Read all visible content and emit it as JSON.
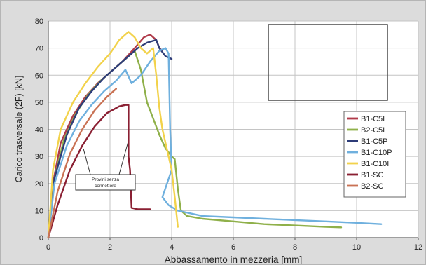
{
  "chart_data": {
    "type": "line",
    "title": "",
    "xlabel": "Abbassamento in mezzeria [mm]",
    "ylabel": "Carico trasversale (2F) [kN]",
    "xlim": [
      0,
      12
    ],
    "ylim": [
      0,
      80
    ],
    "xticks": [
      0,
      2,
      4,
      6,
      8,
      10,
      12
    ],
    "yticks": [
      0,
      10,
      20,
      30,
      40,
      50,
      60,
      70,
      80
    ],
    "grid": true,
    "legend_position": "right",
    "annotation": {
      "lines": [
        "Provini senza",
        "connettore"
      ]
    },
    "series": [
      {
        "name": "B1-C5I",
        "color": "#b03a4a",
        "x": [
          0,
          0.15,
          0.4,
          0.8,
          1.2,
          1.6,
          2.0,
          2.4,
          2.8,
          3.1,
          3.3,
          3.5,
          3.6,
          3.7
        ],
        "y": [
          0,
          20,
          35,
          45,
          52,
          57,
          61,
          65,
          70,
          74,
          75,
          73,
          70,
          69
        ]
      },
      {
        "name": "B2-C5I",
        "color": "#8fb04a",
        "x": [
          0,
          0.2,
          0.5,
          0.9,
          1.3,
          1.7,
          2.1,
          2.5,
          2.8,
          3.0,
          3.2,
          3.4,
          3.6,
          3.8,
          4.0,
          4.1,
          4.2,
          4.3,
          4.5,
          5,
          6,
          7,
          8,
          9,
          9.5
        ],
        "y": [
          0,
          22,
          36,
          46,
          53,
          58,
          62,
          66,
          69,
          62,
          50,
          44,
          38,
          33,
          30,
          29,
          18,
          10,
          8,
          7,
          6,
          5,
          4.5,
          4,
          3.8
        ]
      },
      {
        "name": "B1-C5P",
        "color": "#2d3c78",
        "x": [
          0,
          0.2,
          0.6,
          1.0,
          1.4,
          1.8,
          2.2,
          2.6,
          2.9,
          3.2,
          3.5,
          3.6,
          3.8,
          4.0
        ],
        "y": [
          0,
          22,
          38,
          48,
          54,
          59,
          63,
          67,
          70,
          72,
          73,
          70,
          67,
          66
        ]
      },
      {
        "name": "B1-C10P",
        "color": "#6fb0de",
        "x": [
          0,
          0.2,
          0.6,
          1.0,
          1.4,
          1.8,
          2.2,
          2.5,
          2.7,
          3.0,
          3.3,
          3.6,
          3.8,
          3.9,
          3.95,
          4.0,
          3.7,
          3.9,
          4.2,
          5,
          6,
          7,
          8,
          9,
          10,
          10.8
        ],
        "y": [
          0,
          20,
          34,
          43,
          49,
          54,
          58,
          62,
          57,
          60,
          65,
          69,
          70,
          68,
          40,
          25,
          15,
          12,
          10,
          8,
          7.5,
          7,
          6.5,
          6,
          5.5,
          5
        ]
      },
      {
        "name": "B1-C10I",
        "color": "#f2d24b",
        "x": [
          0,
          0.15,
          0.4,
          0.8,
          1.2,
          1.6,
          2.0,
          2.3,
          2.6,
          2.8,
          3.0,
          3.2,
          3.4,
          3.5,
          3.6,
          3.7,
          3.8,
          4.0,
          4.1,
          4.2
        ],
        "y": [
          0,
          25,
          40,
          50,
          57,
          63,
          68,
          73,
          76,
          74,
          70,
          68,
          70,
          60,
          48,
          40,
          35,
          25,
          15,
          4
        ]
      },
      {
        "name": "B1-SC",
        "color": "#8a1f32",
        "x": [
          0,
          0.3,
          0.7,
          1.1,
          1.5,
          1.9,
          2.3,
          2.5,
          2.6,
          2.6,
          2.65,
          2.7,
          2.9,
          3.0,
          3.3
        ],
        "y": [
          0,
          12,
          25,
          34,
          41,
          46,
          48.5,
          49,
          49,
          30,
          25,
          11,
          10.5,
          10.5,
          10.5
        ]
      },
      {
        "name": "B2-SC",
        "color": "#c97254",
        "x": [
          0,
          0.3,
          0.7,
          1.1,
          1.5,
          1.9,
          2.2
        ],
        "y": [
          0,
          17,
          31,
          40,
          47,
          52,
          55
        ]
      }
    ]
  }
}
